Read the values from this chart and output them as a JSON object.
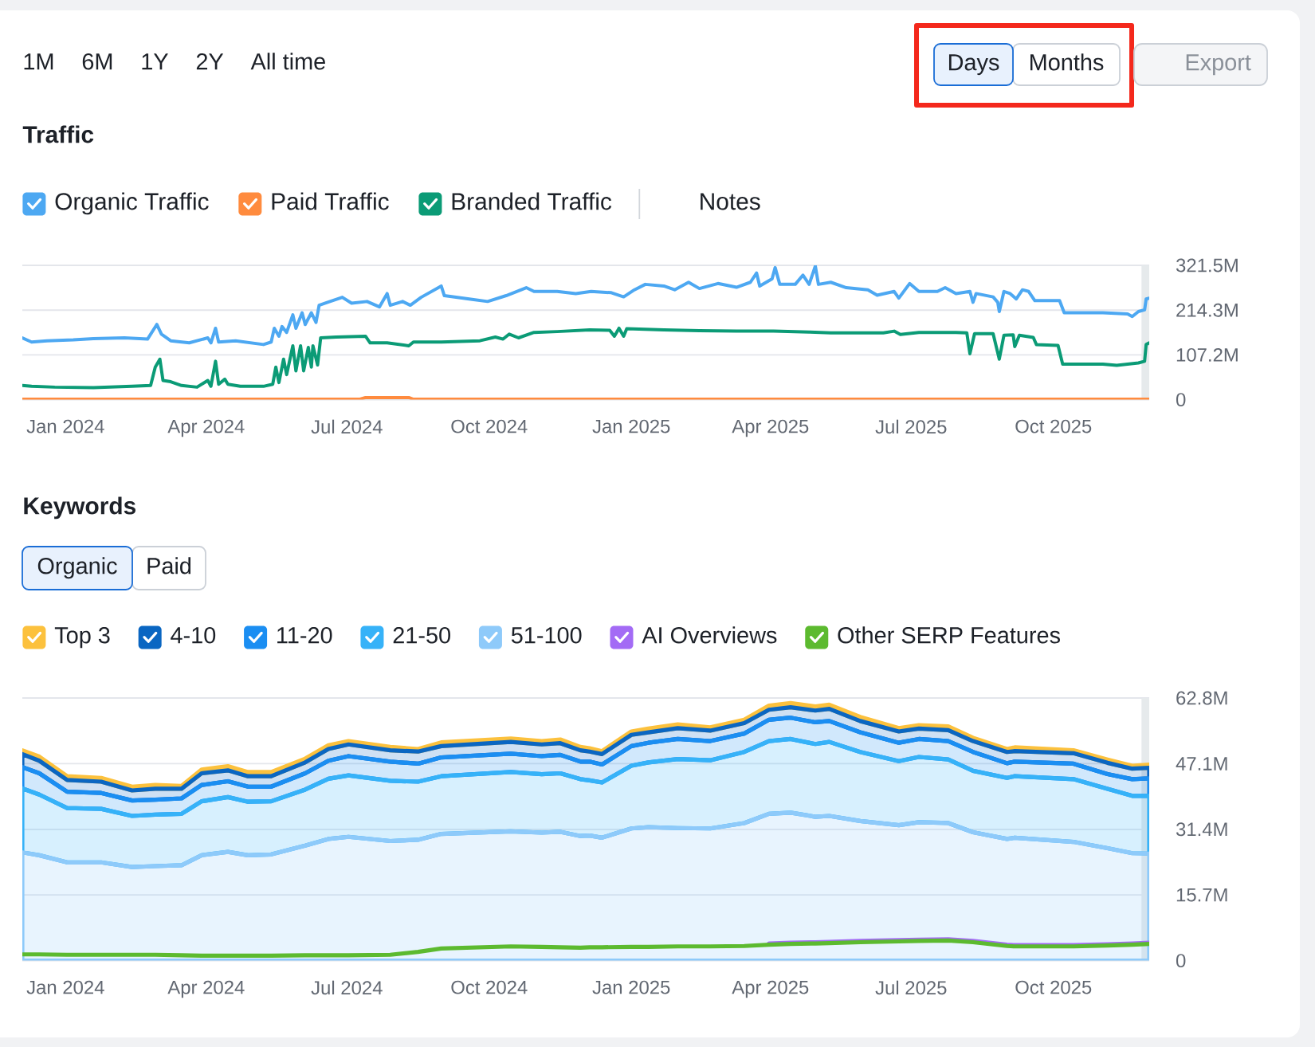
{
  "chart_data": [
    {
      "type": "other",
      "annotations": [
        "1M",
        "6M",
        "1Y",
        "2Y",
        "All time",
        "Days",
        "Months",
        "Export"
      ]
    },
    {
      "type": "line",
      "title": "Traffic",
      "legend": "top left",
      "grid": "y",
      "annotations": [
        "Notes"
      ],
      "xlim": [
        "2023-12-04",
        "2025-12-02"
      ],
      "xticks": [
        {
          "value": "2024-01-01",
          "label": "Jan 2024"
        },
        {
          "value": "2024-04-01",
          "label": "Apr 2024"
        },
        {
          "value": "2024-07-01",
          "label": "Jul 2024"
        },
        {
          "value": "2024-10-01",
          "label": "Oct 2024"
        },
        {
          "value": "2025-01-01",
          "label": "Jan 2025"
        },
        {
          "value": "2025-04-01",
          "label": "Apr 2025"
        },
        {
          "value": "2025-07-01",
          "label": "Jul 2025"
        },
        {
          "value": "2025-10-01",
          "label": "Oct 2025"
        }
      ],
      "ylim": [
        0,
        321.5
      ],
      "yticks": [
        0,
        {
          "value": 107.2,
          "label": "107.2M"
        },
        {
          "value": 214.3,
          "label": "214.3M"
        },
        {
          "value": 321.5,
          "label": "321.5M"
        }
      ],
      "bands": [
        {
          "axis": "x",
          "from": "2025-11-27",
          "to": "2025-12-02",
          "color": "#e6eaec"
        }
      ],
      "series": [
        {
          "name": "Organic Traffic",
          "color": "#4da8f2",
          "x": [
            "2023-12-04",
            "2023-12-10",
            "2023-12-20",
            "2024-01-06",
            "2024-01-19",
            "2024-02-08",
            "2024-02-23",
            "2024-02-29",
            "2024-03-03",
            "2024-03-09",
            "2024-03-21",
            "2024-04-02",
            "2024-04-04",
            "2024-04-07",
            "2024-04-09",
            "2024-04-20",
            "2024-05-08",
            "2024-05-13",
            "2024-05-15",
            "2024-05-18",
            "2024-05-20",
            "2024-05-23",
            "2024-05-27",
            "2024-05-29",
            "2024-06-02",
            "2024-06-04",
            "2024-06-08",
            "2024-06-11",
            "2024-06-13",
            "2024-06-17",
            "2024-06-28",
            "2024-07-04",
            "2024-07-14",
            "2024-07-22",
            "2024-07-27",
            "2024-07-29",
            "2024-08-06",
            "2024-08-11",
            "2024-08-18",
            "2024-08-31",
            "2024-09-02",
            "2024-09-20",
            "2024-09-30",
            "2024-10-12",
            "2024-10-25",
            "2024-10-30",
            "2024-11-14",
            "2024-11-26",
            "2024-12-06",
            "2024-12-19",
            "2024-12-27",
            "2025-01-03",
            "2025-01-10",
            "2025-01-22",
            "2025-01-29",
            "2025-02-07",
            "2025-02-14",
            "2025-02-26",
            "2025-03-10",
            "2025-03-19",
            "2025-03-23",
            "2025-03-25",
            "2025-04-02",
            "2025-04-04",
            "2025-04-07",
            "2025-04-17",
            "2025-04-22",
            "2025-04-26",
            "2025-04-30",
            "2025-05-02",
            "2025-05-10",
            "2025-05-20",
            "2025-06-03",
            "2025-06-09",
            "2025-06-20",
            "2025-06-23",
            "2025-06-30",
            "2025-07-06",
            "2025-07-18",
            "2025-07-23",
            "2025-07-30",
            "2025-08-08",
            "2025-08-10",
            "2025-08-12",
            "2025-08-23",
            "2025-08-26",
            "2025-08-27",
            "2025-08-30",
            "2025-09-03",
            "2025-09-07",
            "2025-09-11",
            "2025-09-15",
            "2025-09-19",
            "2025-10-05",
            "2025-10-08",
            "2025-11-02",
            "2025-11-18",
            "2025-11-21",
            "2025-11-25",
            "2025-11-29",
            "2025-11-30",
            "2025-12-02"
          ],
          "values": [
            148,
            138,
            141,
            143,
            146,
            148,
            145,
            180,
            157,
            141,
            136,
            148,
            136,
            171,
            138,
            141,
            132,
            138,
            171,
            152,
            175,
            161,
            203,
            171,
            208,
            180,
            208,
            185,
            226,
            231,
            245,
            231,
            235,
            222,
            254,
            226,
            235,
            226,
            245,
            272,
            249,
            240,
            235,
            249,
            268,
            259,
            259,
            254,
            259,
            256,
            246,
            263,
            276,
            272,
            263,
            281,
            266,
            278,
            269,
            281,
            303,
            272,
            289,
            316,
            276,
            276,
            298,
            276,
            320,
            276,
            281,
            268,
            263,
            250,
            259,
            243,
            278,
            259,
            259,
            268,
            254,
            259,
            233,
            254,
            246,
            233,
            211,
            259,
            254,
            241,
            263,
            259,
            237,
            237,
            208,
            208,
            205,
            199,
            211,
            215,
            241,
            243
          ]
        },
        {
          "name": "Paid Traffic",
          "color": "#ff8b3e",
          "x": [
            "2023-12-04",
            "2024-07-09",
            "2024-07-13",
            "2024-08-10",
            "2024-08-13",
            "2025-12-02"
          ],
          "values": [
            1,
            1,
            5,
            5,
            1,
            1
          ]
        },
        {
          "name": "Branded Traffic",
          "color": "#0b9b76",
          "x": [
            "2023-12-04",
            "2023-12-10",
            "2023-12-25",
            "2024-01-19",
            "2024-02-13",
            "2024-02-25",
            "2024-02-28",
            "2024-03-02",
            "2024-03-04",
            "2024-03-09",
            "2024-03-16",
            "2024-03-26",
            "2024-04-02",
            "2024-04-04",
            "2024-04-07",
            "2024-04-09",
            "2024-04-13",
            "2024-04-15",
            "2024-04-23",
            "2024-05-08",
            "2024-05-14",
            "2024-05-16",
            "2024-05-18",
            "2024-05-21",
            "2024-05-23",
            "2024-05-27",
            "2024-05-29",
            "2024-06-01",
            "2024-06-03",
            "2024-06-06",
            "2024-06-08",
            "2024-06-09",
            "2024-06-12",
            "2024-06-14",
            "2024-06-24",
            "2024-07-13",
            "2024-07-16",
            "2024-07-27",
            "2024-08-10",
            "2024-08-13",
            "2024-08-31",
            "2024-09-25",
            "2024-10-05",
            "2024-10-10",
            "2024-10-14",
            "2024-10-20",
            "2024-10-30",
            "2024-11-14",
            "2024-12-05",
            "2024-12-18",
            "2024-12-21",
            "2024-12-24",
            "2024-12-27",
            "2024-12-29",
            "2025-01-22",
            "2025-02-14",
            "2025-03-10",
            "2025-04-03",
            "2025-04-26",
            "2025-05-10",
            "2025-06-13",
            "2025-06-20",
            "2025-06-24",
            "2025-07-06",
            "2025-07-30",
            "2025-08-06",
            "2025-08-08",
            "2025-08-11",
            "2025-08-23",
            "2025-08-27",
            "2025-08-30",
            "2025-09-05",
            "2025-09-06",
            "2025-09-09",
            "2025-09-18",
            "2025-09-20",
            "2025-10-04",
            "2025-10-07",
            "2025-11-02",
            "2025-11-11",
            "2025-11-25",
            "2025-11-29",
            "2025-11-30",
            "2025-12-02"
          ],
          "values": [
            34,
            32,
            30,
            29,
            32,
            34,
            78,
            97,
            46,
            43,
            34,
            30,
            46,
            32,
            92,
            37,
            49,
            37,
            32,
            32,
            37,
            78,
            41,
            97,
            60,
            129,
            69,
            129,
            69,
            125,
            78,
            129,
            83,
            148,
            150,
            152,
            136,
            136,
            129,
            138,
            138,
            141,
            150,
            145,
            157,
            148,
            161,
            163,
            167,
            166,
            152,
            171,
            152,
            170,
            167,
            165,
            164,
            164,
            162,
            160,
            160,
            164,
            156,
            161,
            161,
            160,
            110,
            158,
            158,
            97,
            154,
            155,
            127,
            154,
            149,
            132,
            130,
            85,
            85,
            82,
            88,
            92,
            132,
            136
          ]
        }
      ]
    },
    {
      "type": "area",
      "stacked": true,
      "title": "Keywords",
      "legend": "top left",
      "grid": "y",
      "annotations": [
        "Organic",
        "Paid"
      ],
      "x": [
        "2023-12-04",
        "2023-12-15",
        "2024-01-02",
        "2024-01-24",
        "2024-02-13",
        "2024-02-28",
        "2024-03-16",
        "2024-03-29",
        "2024-04-15",
        "2024-04-28",
        "2024-05-13",
        "2024-06-04",
        "2024-06-19",
        "2024-07-02",
        "2024-07-29",
        "2024-08-16",
        "2024-08-31",
        "2024-10-15",
        "2024-11-04",
        "2024-11-16",
        "2024-11-29",
        "2024-12-05",
        "2024-12-13",
        "2025-01-01",
        "2025-01-12",
        "2025-01-31",
        "2025-02-21",
        "2025-03-15",
        "2025-03-31",
        "2025-04-14",
        "2025-04-30",
        "2025-05-09",
        "2025-05-29",
        "2025-06-23",
        "2025-07-06",
        "2025-07-25",
        "2025-08-10",
        "2025-09-01",
        "2025-09-06",
        "2025-10-14",
        "2025-11-05",
        "2025-11-21",
        "2025-12-02"
      ],
      "xlim": [
        "2023-12-04",
        "2025-12-02"
      ],
      "xticks": [
        {
          "value": "2024-01-01",
          "label": "Jan 2024"
        },
        {
          "value": "2024-04-01",
          "label": "Apr 2024"
        },
        {
          "value": "2024-07-01",
          "label": "Jul 2024"
        },
        {
          "value": "2024-10-01",
          "label": "Oct 2024"
        },
        {
          "value": "2025-01-01",
          "label": "Jan 2025"
        },
        {
          "value": "2025-04-01",
          "label": "Apr 2025"
        },
        {
          "value": "2025-07-01",
          "label": "Jul 2025"
        },
        {
          "value": "2025-10-01",
          "label": "Oct 2025"
        }
      ],
      "ylim": [
        0,
        62.8
      ],
      "yticks": [
        0,
        {
          "value": 15.7,
          "label": "15.7M"
        },
        {
          "value": 31.4,
          "label": "31.4M"
        },
        {
          "value": 47.1,
          "label": "47.1M"
        },
        {
          "value": 62.8,
          "label": "62.8M"
        }
      ],
      "bands": [
        {
          "axis": "x",
          "from": "2025-11-27",
          "to": "2025-12-02",
          "color": "#e6eaec"
        }
      ],
      "series": [
        {
          "name": "51-100",
          "color": "#8ecafa",
          "values": [
            25.9,
            25.2,
            23.5,
            23.5,
            22.4,
            22.6,
            22.8,
            25.2,
            26.0,
            25.2,
            25.4,
            27.5,
            29.1,
            29.6,
            28.6,
            28.9,
            30.3,
            30.9,
            30.6,
            30.8,
            29.8,
            29.9,
            29.4,
            31.6,
            31.9,
            31.7,
            31.6,
            32.9,
            35.1,
            35.4,
            34.4,
            34.6,
            33.4,
            32.4,
            33.1,
            32.9,
            30.7,
            29.1,
            29.4,
            28.4,
            26.9,
            25.7,
            25.6
          ]
        },
        {
          "name": "21-50",
          "color": "#36b2f8",
          "values": [
            15.3,
            14.5,
            13.0,
            12.8,
            12.2,
            12.3,
            12.3,
            12.9,
            13.1,
            12.8,
            12.7,
            13.4,
            14.4,
            14.7,
            14.4,
            13.9,
            13.8,
            14.2,
            14.0,
            14.0,
            13.6,
            13.2,
            13.2,
            15.0,
            15.5,
            16.5,
            16.3,
            17.0,
            17.4,
            17.6,
            17.4,
            17.7,
            16.5,
            15.3,
            15.6,
            15.2,
            14.7,
            14.6,
            14.7,
            15.0,
            14.2,
            13.7,
            13.8
          ]
        },
        {
          "name": "11-20",
          "color": "#1b8ef2",
          "values": [
            5.1,
            5.1,
            3.9,
            3.8,
            3.7,
            3.6,
            3.7,
            3.9,
            3.8,
            3.6,
            3.5,
            3.9,
            4.3,
            4.6,
            4.6,
            4.3,
            4.5,
            4.4,
            4.3,
            4.4,
            4.2,
            4.5,
            4.3,
            4.7,
            4.7,
            4.8,
            4.6,
            4.4,
            5.1,
            5.1,
            5.2,
            5.0,
            4.7,
            4.4,
            4.3,
            4.4,
            4.5,
            3.5,
            3.5,
            3.7,
            3.5,
            4.0,
            4.2
          ]
        },
        {
          "name": "4-10",
          "color": "#0a66c2",
          "values": [
            3.1,
            3.0,
            2.8,
            2.7,
            2.4,
            2.6,
            2.3,
            2.8,
            2.6,
            2.5,
            2.5,
            2.6,
            2.8,
            2.8,
            2.7,
            2.9,
            2.7,
            2.8,
            2.8,
            2.8,
            2.7,
            2.4,
            2.5,
            2.7,
            2.5,
            2.6,
            2.5,
            2.5,
            2.4,
            2.5,
            2.8,
            2.9,
            2.7,
            2.7,
            2.5,
            2.6,
            2.6,
            2.7,
            2.5,
            2.5,
            2.7,
            2.5,
            2.5
          ]
        },
        {
          "name": "Top 3",
          "color": "#fcc13d",
          "values": [
            0.9,
            1.0,
            0.9,
            0.9,
            0.9,
            0.9,
            0.7,
            0.9,
            1.0,
            1.0,
            1.0,
            0.9,
            0.9,
            0.8,
            0.8,
            0.6,
            0.9,
            0.8,
            0.8,
            0.9,
            0.8,
            0.8,
            0.7,
            0.8,
            0.9,
            0.9,
            0.8,
            0.8,
            1.0,
            1.0,
            1.0,
            1.0,
            1.0,
            0.8,
            0.8,
            0.9,
            0.8,
            0.7,
            0.9,
            0.7,
            0.8,
            0.7,
            0.8
          ]
        },
        {
          "name": "AI Overviews",
          "color": "#a36bf5",
          "type": "line",
          "values": [
            null,
            null,
            null,
            null,
            null,
            null,
            null,
            null,
            null,
            null,
            null,
            null,
            null,
            null,
            null,
            null,
            null,
            null,
            null,
            null,
            null,
            null,
            null,
            null,
            null,
            null,
            null,
            null,
            4.1,
            4.3,
            4.4,
            4.5,
            4.7,
            4.9,
            5.0,
            5.1,
            4.7,
            3.8,
            3.7,
            3.7,
            3.9,
            4.1,
            4.3
          ]
        },
        {
          "name": "Other SERP Features",
          "color": "#5cba2f",
          "type": "line",
          "values": [
            1.5,
            1.5,
            1.4,
            1.4,
            1.4,
            1.4,
            1.3,
            1.2,
            1.2,
            1.2,
            1.2,
            1.3,
            1.3,
            1.3,
            1.4,
            2.1,
            2.9,
            3.4,
            3.3,
            3.2,
            3.1,
            3.2,
            3.2,
            3.3,
            3.3,
            3.4,
            3.4,
            3.5,
            3.8,
            4.0,
            4.1,
            4.2,
            4.4,
            4.6,
            4.7,
            4.8,
            4.4,
            3.5,
            3.4,
            3.4,
            3.6,
            3.8,
            4.0
          ]
        }
      ]
    }
  ]
}
